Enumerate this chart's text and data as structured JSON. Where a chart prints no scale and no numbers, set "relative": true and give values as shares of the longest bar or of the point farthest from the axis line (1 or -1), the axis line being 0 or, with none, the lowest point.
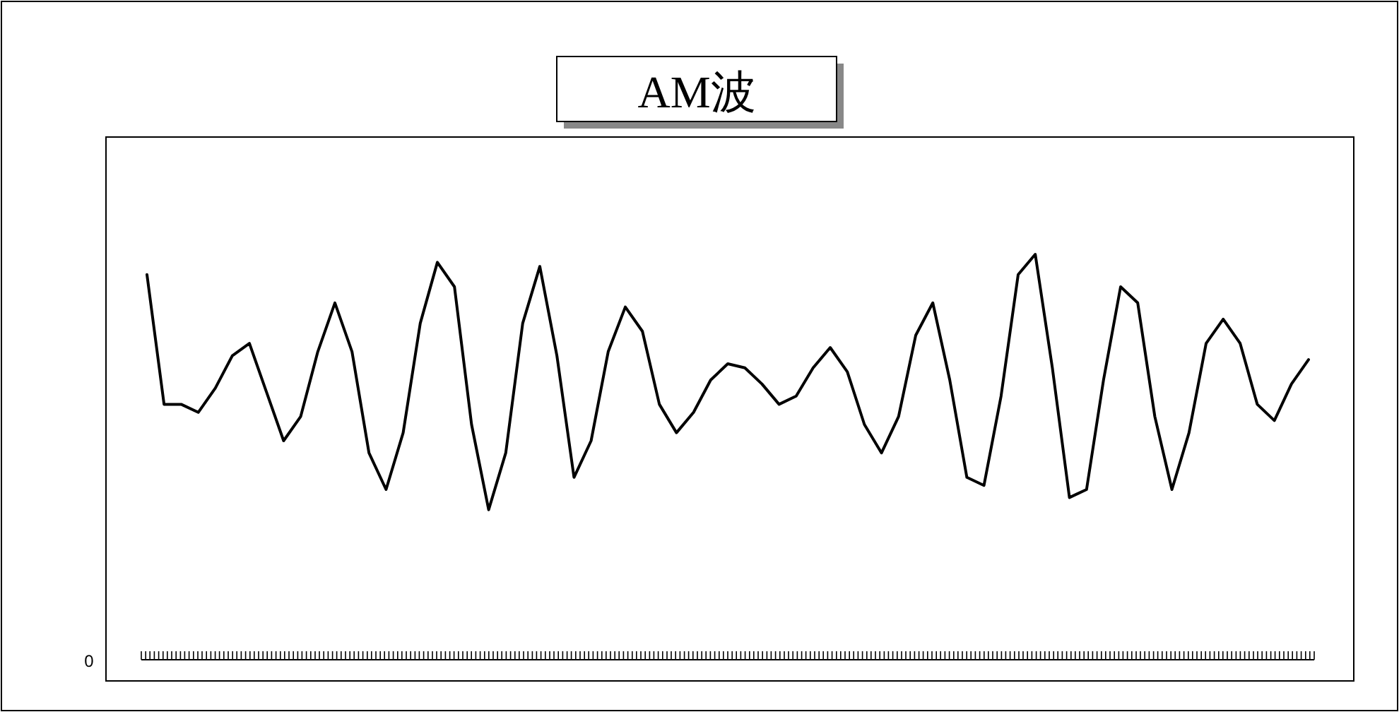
{
  "chart_data": {
    "type": "line",
    "title": "AM波",
    "relative": true,
    "color": "#000000",
    "marker": "none",
    "line_style": "solid",
    "annotations": [
      "0"
    ],
    "categories": [
      null,
      null,
      null,
      null,
      null,
      null,
      null,
      null,
      null,
      null,
      null,
      null,
      null,
      null,
      null,
      null,
      null,
      null,
      null,
      null,
      null,
      null,
      null,
      null,
      null,
      null,
      null,
      null,
      null,
      null,
      null,
      null,
      null,
      null,
      null,
      null,
      null,
      null,
      null,
      null,
      null,
      null,
      null,
      null,
      null,
      null,
      null,
      null,
      null,
      null,
      null,
      null,
      null,
      null,
      null,
      null,
      null,
      null,
      null,
      null,
      null,
      null,
      null,
      null,
      null,
      null,
      null,
      null,
      null
    ],
    "values": [
      0.95,
      0.63,
      0.63,
      0.61,
      0.67,
      0.75,
      0.78,
      0.66,
      0.54,
      0.6,
      0.76,
      0.88,
      0.76,
      0.51,
      0.42,
      0.56,
      0.83,
      0.98,
      0.92,
      0.58,
      0.37,
      0.51,
      0.83,
      0.97,
      0.75,
      0.45,
      0.54,
      0.76,
      0.87,
      0.81,
      0.63,
      0.56,
      0.61,
      0.69,
      0.73,
      0.72,
      0.68,
      0.63,
      0.65,
      0.72,
      0.77,
      0.71,
      0.58,
      0.51,
      0.6,
      0.8,
      0.88,
      0.69,
      0.45,
      0.43,
      0.65,
      0.95,
      1,
      0.72,
      0.4,
      0.42,
      0.69,
      0.92,
      0.88,
      0.6,
      0.42,
      0.56,
      0.78,
      0.84,
      0.78,
      0.63,
      0.59,
      0.68,
      0.74
    ]
  }
}
